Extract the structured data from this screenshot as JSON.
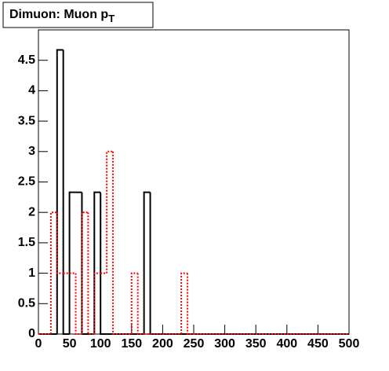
{
  "chart_data": {
    "type": "histogram",
    "title": "Dimuon: Muon p",
    "title_subscript": "T",
    "bins": [
      0,
      10,
      20,
      30,
      40,
      50,
      60,
      70,
      80,
      90,
      100,
      110,
      120,
      130,
      140,
      150,
      160,
      170,
      180,
      190,
      200,
      210,
      220,
      230,
      240,
      250,
      260,
      270,
      280,
      290,
      300,
      310,
      320,
      330,
      340,
      350,
      360,
      370,
      380,
      390,
      400,
      410,
      420,
      430,
      440,
      450,
      460,
      470,
      480,
      490,
      500
    ],
    "series": [
      {
        "color": "#000000",
        "dash": false,
        "values": [
          0,
          0,
          0,
          4.67,
          0,
          2.33,
          2.33,
          0,
          0,
          2.33,
          0,
          0,
          0,
          0,
          0,
          0,
          0,
          2.33,
          0,
          0,
          0,
          0,
          0,
          0,
          0,
          0,
          0,
          0,
          0,
          0,
          0,
          0,
          0,
          0,
          0,
          0,
          0,
          0,
          0,
          0,
          0,
          0,
          0,
          0,
          0,
          0,
          0,
          0,
          0,
          0
        ]
      },
      {
        "color": "#ff0000",
        "dash": true,
        "values": [
          0,
          0,
          2,
          1,
          1,
          1,
          0,
          2,
          0,
          1,
          1,
          3,
          0,
          0,
          0,
          1,
          0,
          0,
          0,
          0,
          0,
          0,
          0,
          1,
          0,
          0,
          0,
          0,
          0,
          0,
          0,
          0,
          0,
          0,
          0,
          0,
          0,
          0,
          0,
          0,
          0,
          0,
          0,
          0,
          0,
          0,
          0,
          0,
          0,
          0
        ]
      }
    ],
    "xlim": [
      0,
      500
    ],
    "xticks": [
      0,
      50,
      100,
      150,
      200,
      250,
      300,
      350,
      400,
      450,
      500
    ],
    "ylim": [
      0,
      5
    ],
    "yticks": [
      0,
      0.5,
      1,
      1.5,
      2,
      2.5,
      3,
      3.5,
      4,
      4.5
    ]
  }
}
